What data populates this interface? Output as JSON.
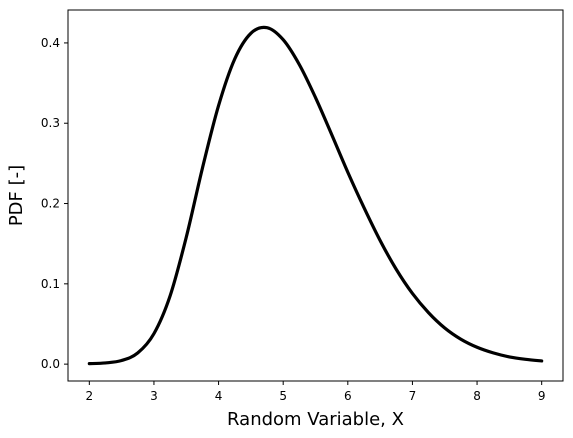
{
  "chart_data": {
    "type": "line",
    "title": "",
    "xlabel": "Random Variable, X",
    "ylabel": "PDF [-]",
    "xlim": [
      1.67,
      9.33
    ],
    "ylim": [
      -0.021,
      0.441
    ],
    "xticks": [
      2,
      3,
      4,
      5,
      6,
      7,
      8,
      9
    ],
    "yticks": [
      0.0,
      0.1,
      0.2,
      0.3,
      0.4
    ],
    "ytick_labels": [
      "0.0",
      "0.1",
      "0.2",
      "0.3",
      "0.4"
    ],
    "grid": false,
    "line_color": "#000000",
    "series": [
      {
        "x": [
          2.0,
          2.25,
          2.5,
          2.75,
          3.0,
          3.25,
          3.5,
          3.75,
          4.0,
          4.25,
          4.5,
          4.75,
          5.0,
          5.25,
          5.5,
          5.75,
          6.0,
          6.25,
          6.5,
          6.75,
          7.0,
          7.25,
          7.5,
          7.75,
          8.0,
          8.25,
          8.5,
          8.75,
          9.0
        ],
        "y": [
          0.0006,
          0.0015,
          0.0045,
          0.014,
          0.038,
          0.085,
          0.158,
          0.244,
          0.322,
          0.38,
          0.412,
          0.419,
          0.404,
          0.373,
          0.332,
          0.286,
          0.239,
          0.195,
          0.154,
          0.118,
          0.088,
          0.064,
          0.045,
          0.031,
          0.021,
          0.014,
          0.009,
          0.006,
          0.004
        ]
      }
    ]
  }
}
